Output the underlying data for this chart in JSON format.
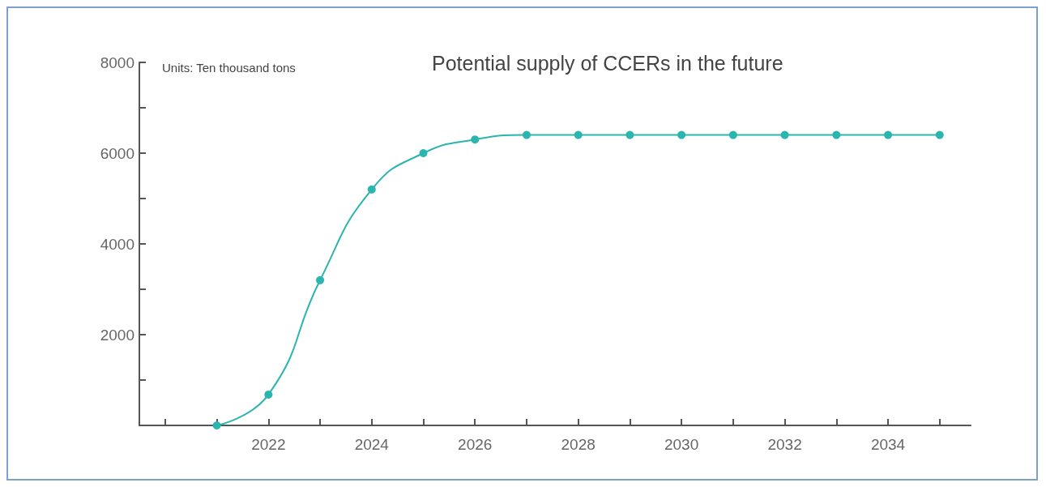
{
  "chart_data": {
    "type": "line",
    "title": "Potential supply of CCERs in the future",
    "annotations": [
      "Units: Ten thousand tons"
    ],
    "x": [
      2021,
      2022,
      2023,
      2024,
      2025,
      2026,
      2027,
      2028,
      2029,
      2030,
      2031,
      2032,
      2033,
      2034,
      2035
    ],
    "series": [
      {
        "color": "#2bb5af",
        "values": [
          0,
          680,
          3200,
          5200,
          6000,
          6300,
          6400,
          6400,
          6400,
          6400,
          6400,
          6400,
          6400,
          6400,
          6400
        ]
      }
    ],
    "xlim": [
      2019.5,
      2035.6
    ],
    "xticks": [
      {
        "value": 2020,
        "label": null
      },
      {
        "value": 2021,
        "label": null
      },
      2022,
      {
        "value": 2023,
        "label": null
      },
      2024,
      {
        "value": 2025,
        "label": null
      },
      2026,
      {
        "value": 2027,
        "label": null
      },
      2028,
      {
        "value": 2029,
        "label": null
      },
      2030,
      {
        "value": 2031,
        "label": null
      },
      2032,
      {
        "value": 2033,
        "label": null
      },
      2034,
      {
        "value": 2035,
        "label": null
      }
    ],
    "ylim": [
      0,
      8000
    ],
    "yticks": [
      {
        "value": 0,
        "label": null
      },
      {
        "value": 1000,
        "label": null
      },
      2000,
      {
        "value": 3000,
        "label": null
      },
      4000,
      {
        "value": 5000,
        "label": null
      },
      6000,
      {
        "value": 7000,
        "label": null
      },
      8000
    ],
    "grid": false,
    "marker": "circle",
    "line_style": "solid"
  }
}
